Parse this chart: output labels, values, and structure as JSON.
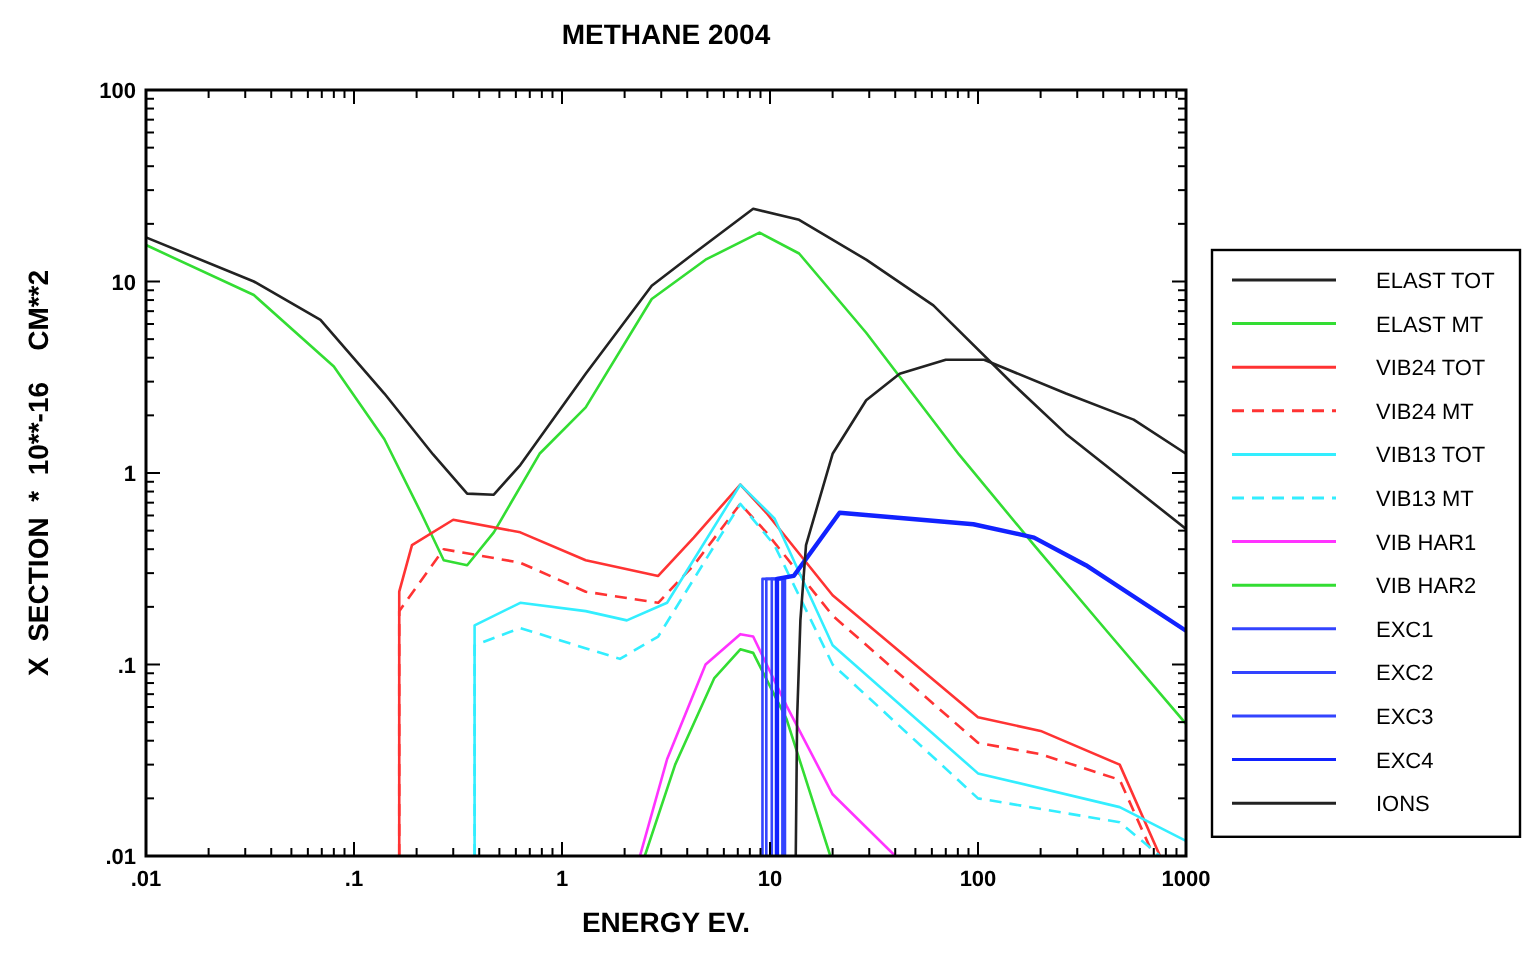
{
  "chart_data": {
    "type": "line",
    "title": "METHANE  2004",
    "xlabel": "ENERGY EV.",
    "ylabel": "X  SECTION  *  10**-16    CM**2",
    "log": "xy",
    "legend": "right",
    "grid": false,
    "xlim": [
      0.01,
      1000
    ],
    "ylim": [
      0.01,
      100
    ],
    "xticks": [
      {
        "value": 0.01,
        "label": ".01"
      },
      {
        "value": 0.02,
        "label": null
      },
      {
        "value": 0.03,
        "label": null
      },
      {
        "value": 0.04,
        "label": null
      },
      {
        "value": 0.05,
        "label": null
      },
      {
        "value": 0.06,
        "label": null
      },
      {
        "value": 0.07,
        "label": null
      },
      {
        "value": 0.08,
        "label": null
      },
      {
        "value": 0.09,
        "label": null
      },
      {
        "value": 0.1,
        "label": ".1"
      },
      {
        "value": 0.2,
        "label": null
      },
      {
        "value": 0.3,
        "label": null
      },
      {
        "value": 0.4,
        "label": null
      },
      {
        "value": 0.5,
        "label": null
      },
      {
        "value": 0.6,
        "label": null
      },
      {
        "value": 0.7,
        "label": null
      },
      {
        "value": 0.8,
        "label": null
      },
      {
        "value": 0.9,
        "label": null
      },
      1,
      {
        "value": 2,
        "label": null
      },
      {
        "value": 3,
        "label": null
      },
      {
        "value": 4,
        "label": null
      },
      {
        "value": 5,
        "label": null
      },
      {
        "value": 6,
        "label": null
      },
      {
        "value": 7,
        "label": null
      },
      {
        "value": 8,
        "label": null
      },
      {
        "value": 9,
        "label": null
      },
      10,
      {
        "value": 20,
        "label": null
      },
      {
        "value": 30,
        "label": null
      },
      {
        "value": 40,
        "label": null
      },
      {
        "value": 50,
        "label": null
      },
      {
        "value": 60,
        "label": null
      },
      {
        "value": 70,
        "label": null
      },
      {
        "value": 80,
        "label": null
      },
      {
        "value": 90,
        "label": null
      },
      100,
      {
        "value": 200,
        "label": null
      },
      {
        "value": 300,
        "label": null
      },
      {
        "value": 400,
        "label": null
      },
      {
        "value": 500,
        "label": null
      },
      {
        "value": 600,
        "label": null
      },
      {
        "value": 700,
        "label": null
      },
      {
        "value": 800,
        "label": null
      },
      {
        "value": 900,
        "label": null
      },
      1000
    ],
    "yticks": [
      {
        "value": 0.01,
        "label": ".01"
      },
      {
        "value": 0.02,
        "label": null
      },
      {
        "value": 0.03,
        "label": null
      },
      {
        "value": 0.04,
        "label": null
      },
      {
        "value": 0.05,
        "label": null
      },
      {
        "value": 0.06,
        "label": null
      },
      {
        "value": 0.07,
        "label": null
      },
      {
        "value": 0.08,
        "label": null
      },
      {
        "value": 0.09,
        "label": null
      },
      {
        "value": 0.1,
        "label": ".1"
      },
      {
        "value": 0.2,
        "label": null
      },
      {
        "value": 0.3,
        "label": null
      },
      {
        "value": 0.4,
        "label": null
      },
      {
        "value": 0.5,
        "label": null
      },
      {
        "value": 0.6,
        "label": null
      },
      {
        "value": 0.7,
        "label": null
      },
      {
        "value": 0.8,
        "label": null
      },
      {
        "value": 0.9,
        "label": null
      },
      1,
      {
        "value": 2,
        "label": null
      },
      {
        "value": 3,
        "label": null
      },
      {
        "value": 4,
        "label": null
      },
      {
        "value": 5,
        "label": null
      },
      {
        "value": 6,
        "label": null
      },
      {
        "value": 7,
        "label": null
      },
      {
        "value": 8,
        "label": null
      },
      {
        "value": 9,
        "label": null
      },
      10,
      {
        "value": 20,
        "label": null
      },
      {
        "value": 30,
        "label": null
      },
      {
        "value": 40,
        "label": null
      },
      {
        "value": 50,
        "label": null
      },
      {
        "value": 60,
        "label": null
      },
      {
        "value": 70,
        "label": null
      },
      {
        "value": 80,
        "label": null
      },
      {
        "value": 90,
        "label": null
      },
      100
    ],
    "series": [
      {
        "name": "ELAST TOT",
        "color": "#222222",
        "x": [
          0.01,
          0.033,
          0.069,
          0.14,
          0.24,
          0.35,
          0.47,
          0.63,
          1.3,
          2.7,
          4.3,
          8.3,
          13.8,
          29,
          61,
          148,
          265,
          1000
        ],
        "values": [
          17,
          10,
          6.3,
          2.6,
          1.25,
          0.78,
          0.77,
          1.1,
          3.3,
          9.5,
          14,
          24,
          21,
          13,
          7.5,
          2.9,
          1.6,
          0.51
        ]
      },
      {
        "name": "ELAST MT",
        "color": "#33dd33",
        "x": [
          0.01,
          0.033,
          0.08,
          0.14,
          0.21,
          0.27,
          0.35,
          0.47,
          0.78,
          1.3,
          2.7,
          4.9,
          8.9,
          13.8,
          29,
          81,
          186,
          415,
          1000
        ],
        "values": [
          15.5,
          8.5,
          3.6,
          1.5,
          0.62,
          0.35,
          0.33,
          0.49,
          1.26,
          2.2,
          8.1,
          13,
          18,
          14,
          5.4,
          1.25,
          0.42,
          0.15,
          0.049
        ]
      },
      {
        "name": "VIB24 TOT",
        "color": "#ff3333",
        "x": [
          0.165,
          0.165,
          0.19,
          0.3,
          0.63,
          1.3,
          2.9,
          4.3,
          7.2,
          9.6,
          20,
          100,
          200,
          480,
          750
        ],
        "values": [
          0.01,
          0.24,
          0.42,
          0.57,
          0.49,
          0.35,
          0.29,
          0.46,
          0.87,
          0.62,
          0.23,
          0.053,
          0.045,
          0.03,
          0.01
        ]
      },
      {
        "name": "VIB24 MT",
        "color": "#ff3333",
        "line_style": "dashed",
        "x": [
          0.165,
          0.165,
          0.27,
          0.63,
          1.3,
          2.9,
          4.3,
          7.2,
          9.6,
          20,
          100,
          200,
          480,
          700
        ],
        "values": [
          0.01,
          0.19,
          0.4,
          0.34,
          0.24,
          0.21,
          0.33,
          0.69,
          0.49,
          0.18,
          0.039,
          0.034,
          0.025,
          0.01
        ]
      },
      {
        "name": "VIB13 TOT",
        "color": "#33eeff",
        "x": [
          0.38,
          0.38,
          0.63,
          1.3,
          2.05,
          3.2,
          7.2,
          10.5,
          20,
          100,
          480,
          1000
        ],
        "values": [
          0.01,
          0.16,
          0.21,
          0.19,
          0.17,
          0.21,
          0.87,
          0.58,
          0.126,
          0.027,
          0.018,
          0.012
        ]
      },
      {
        "name": "VIB13 MT",
        "color": "#33eeff",
        "line_style": "dashed",
        "x": [
          0.38,
          0.38,
          0.63,
          1.9,
          2.9,
          7.2,
          10.5,
          20,
          100,
          480,
          750
        ],
        "values": [
          0.01,
          0.126,
          0.155,
          0.107,
          0.14,
          0.69,
          0.42,
          0.1,
          0.02,
          0.015,
          0.01
        ]
      },
      {
        "name": "VIB HAR1",
        "color": "#ff33ff",
        "x": [
          2.37,
          3.2,
          4.9,
          7.2,
          8.3,
          12,
          20,
          40
        ],
        "values": [
          0.01,
          0.032,
          0.1,
          0.144,
          0.14,
          0.061,
          0.021,
          0.01
        ]
      },
      {
        "name": "VIB HAR2",
        "color": "#33dd33",
        "x": [
          2.5,
          3.5,
          5.4,
          7.2,
          8.3,
          12,
          19.5
        ],
        "values": [
          0.01,
          0.03,
          0.085,
          0.12,
          0.115,
          0.052,
          0.01
        ]
      },
      {
        "name": "EXC1",
        "color": "#3344ff",
        "x": [
          9.2,
          9.2,
          11.5,
          11.5
        ],
        "values": [
          0.01,
          0.28,
          0.28,
          0.01
        ]
      },
      {
        "name": "EXC2",
        "color": "#3344ff",
        "x": [
          9.6,
          9.6,
          11.5,
          11.5
        ],
        "values": [
          0.01,
          0.28,
          0.28,
          0.01
        ]
      },
      {
        "name": "EXC3",
        "color": "#3344ff",
        "x": [
          10.2,
          10.2,
          11.8,
          11.8
        ],
        "values": [
          0.01,
          0.28,
          0.28,
          0.01
        ]
      },
      {
        "name": "EXC4",
        "color": "#1122ff",
        "x": [
          10.8,
          10.8,
          13,
          21.6,
          95,
          186,
          330,
          1000
        ],
        "values": [
          0.01,
          0.28,
          0.29,
          0.62,
          0.54,
          0.46,
          0.33,
          0.15
        ]
      },
      {
        "name": "IONS",
        "color": "#222222",
        "x": [
          13.3,
          13.5,
          14,
          14.9,
          20,
          29,
          42,
          70,
          107,
          265,
          560,
          1000
        ],
        "values": [
          0.01,
          0.052,
          0.17,
          0.42,
          1.26,
          2.4,
          3.3,
          3.9,
          3.9,
          2.6,
          1.9,
          1.26
        ]
      }
    ]
  }
}
